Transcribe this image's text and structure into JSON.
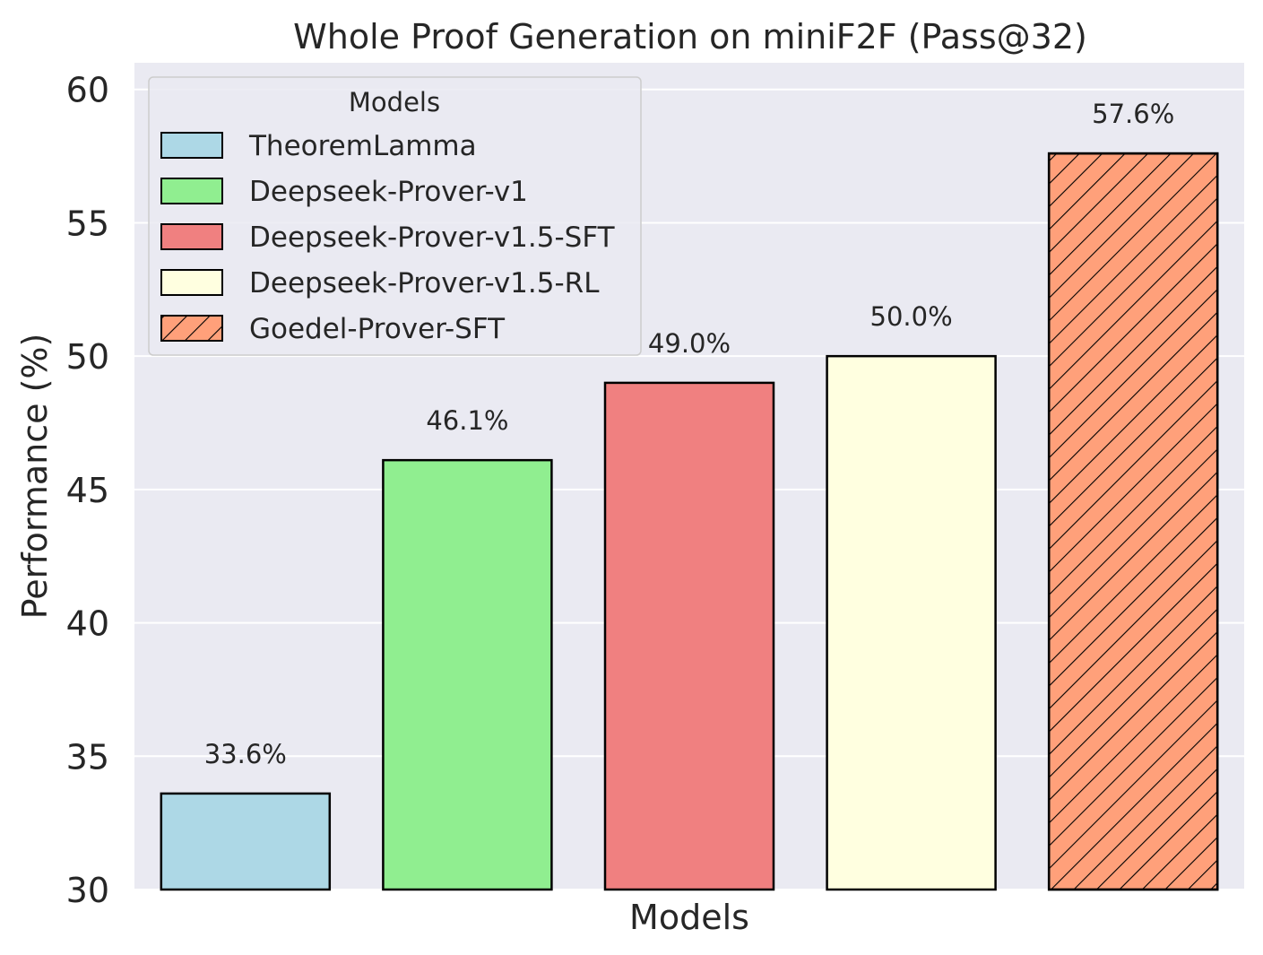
{
  "chart_data": {
    "type": "bar",
    "title": "Whole Proof Generation on miniF2F (Pass@32)",
    "xlabel": "Models",
    "ylabel": "Performance (%)",
    "ylim": [
      30,
      61
    ],
    "yticks": [
      30,
      35,
      40,
      45,
      50,
      55,
      60
    ],
    "grid": true,
    "legend": {
      "title": "Models",
      "placement": "top-left"
    },
    "series": [
      {
        "name": "TheoremLamma",
        "value": 33.6,
        "label": "33.6%",
        "color": "#add8e6",
        "hatch": false
      },
      {
        "name": "Deepseek-Prover-v1",
        "value": 46.1,
        "label": "46.1%",
        "color": "#90ee90",
        "hatch": false
      },
      {
        "name": "Deepseek-Prover-v1.5-SFT",
        "value": 49.0,
        "label": "49.0%",
        "color": "#f08080",
        "hatch": false
      },
      {
        "name": "Deepseek-Prover-v1.5-RL",
        "value": 50.0,
        "label": "50.0%",
        "color": "#ffffe0",
        "hatch": false
      },
      {
        "name": "Goedel-Prover-SFT",
        "value": 57.6,
        "label": "57.6%",
        "color": "#ffa07a",
        "hatch": true
      }
    ],
    "colors": {
      "plot_background": "#eaeaf2",
      "grid": "#ffffff",
      "bar_edge": "#000000",
      "text": "#262626"
    }
  }
}
